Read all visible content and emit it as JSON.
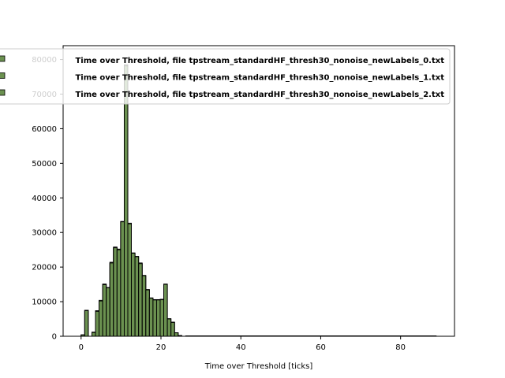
{
  "chart_data": {
    "type": "bar",
    "xlabel": "Time over Threshold [ticks]",
    "ylabel": "",
    "xlim": [
      -4.5,
      93.5
    ],
    "ylim": [
      0,
      84000
    ],
    "xticks": [
      0,
      20,
      40,
      60,
      80
    ],
    "yticks": [
      0,
      10000,
      20000,
      30000,
      40000,
      50000,
      60000,
      70000,
      80000
    ],
    "xtick_labels": [
      "0",
      "20",
      "40",
      "60",
      "80"
    ],
    "ytick_labels": [
      "0",
      "10000",
      "20000",
      "30000",
      "40000",
      "50000",
      "60000",
      "70000",
      "80000"
    ],
    "bin_edges_start": 0,
    "bin_width": 0.9,
    "bar_color": "#6b9150",
    "edge_color": "#000000",
    "legend_placement": "top-left",
    "series": [
      {
        "name": "Time over Threshold, file tpstream_standardHF_thresh30_nonoise_newLabels_0.txt",
        "values": [
          400,
          7500,
          0,
          1000,
          7200,
          10200,
          15000,
          14000,
          21000,
          25500,
          25000,
          33000,
          78000,
          32500,
          24000,
          23000,
          21000,
          17500,
          13500,
          11000,
          10500,
          10500,
          10500,
          15000,
          5000,
          4000,
          1000,
          200,
          0
        ]
      },
      {
        "name": "Time over Threshold, file tpstream_standardHF_thresh30_nonoise_newLabels_1.txt",
        "values": [
          400,
          7500,
          0,
          1200,
          7400,
          10400,
          15100,
          14100,
          21400,
          25800,
          25200,
          33200,
          78500,
          32700,
          24100,
          23100,
          21200,
          17600,
          13500,
          11100,
          10600,
          10600,
          10700,
          15100,
          5100,
          4100,
          1000,
          200,
          0
        ]
      },
      {
        "name": "Time over Threshold, file tpstream_standardHF_thresh30_nonoise_newLabels_2.txt",
        "values": [
          400,
          7400,
          0,
          1100,
          7200,
          10200,
          14900,
          14000,
          21200,
          25600,
          25000,
          33100,
          78200,
          32500,
          24000,
          23000,
          21000,
          17500,
          13400,
          11000,
          10500,
          10500,
          10600,
          15000,
          5000,
          4000,
          1000,
          200,
          0
        ]
      }
    ],
    "tail": {
      "x_end": 89,
      "value": 0
    }
  }
}
